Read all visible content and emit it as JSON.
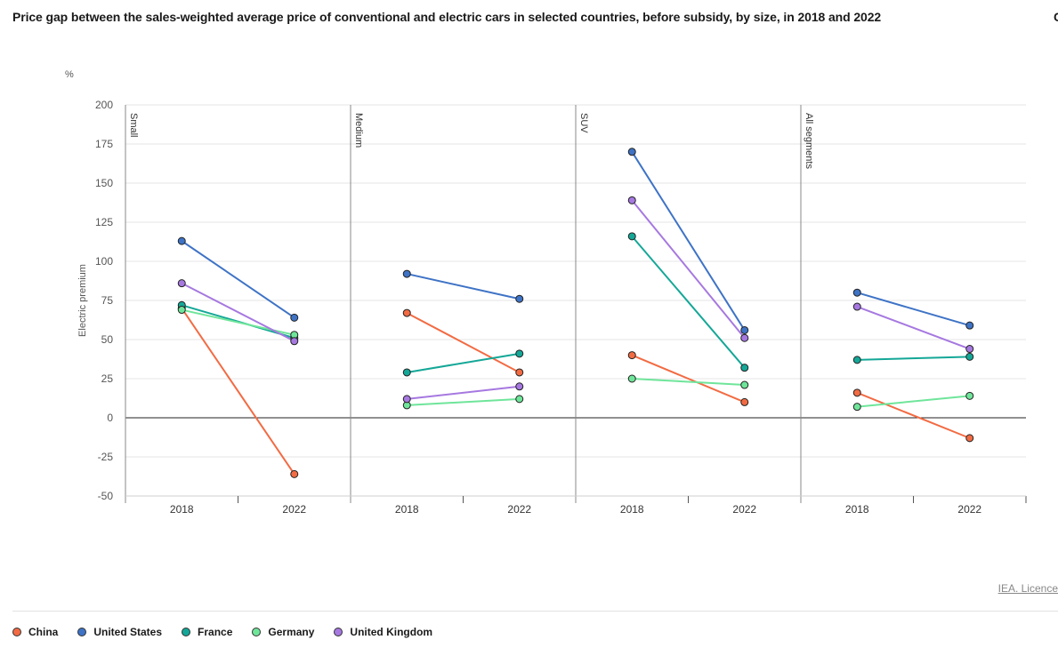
{
  "title": "Price gap between the sales-weighted average price of conventional and electric cars in selected countries, before subsidy, by size, in 2018 and 2022",
  "title_overflow": "C",
  "licence": "IEA. Licence",
  "chart_data": {
    "type": "line",
    "unit_label": "%",
    "ylabel": "Electric premium",
    "ylim": [
      -50,
      200
    ],
    "yticks": [
      200,
      175,
      150,
      125,
      100,
      75,
      50,
      25,
      0,
      -25,
      -50
    ],
    "categories": [
      "2018",
      "2022"
    ],
    "panels": [
      "Small",
      "Medium",
      "SUV",
      "All segments"
    ],
    "series": [
      {
        "name": "China",
        "color": "#f26b43",
        "values": [
          [
            70,
            -36
          ],
          [
            67,
            29
          ],
          [
            40,
            10
          ],
          [
            16,
            -13
          ]
        ]
      },
      {
        "name": "United States",
        "color": "#3e73c6",
        "values": [
          [
            113,
            64
          ],
          [
            92,
            76
          ],
          [
            170,
            56
          ],
          [
            80,
            59
          ]
        ]
      },
      {
        "name": "France",
        "color": "#14a797",
        "values": [
          [
            72,
            51
          ],
          [
            29,
            41
          ],
          [
            116,
            32
          ],
          [
            37,
            39
          ]
        ]
      },
      {
        "name": "Germany",
        "color": "#6fe59a",
        "values": [
          [
            69,
            53
          ],
          [
            8,
            12
          ],
          [
            25,
            21
          ],
          [
            7,
            14
          ]
        ]
      },
      {
        "name": "United Kingdom",
        "color": "#a678e0",
        "values": [
          [
            86,
            49
          ],
          [
            12,
            20
          ],
          [
            139,
            51
          ],
          [
            71,
            44
          ]
        ]
      }
    ]
  }
}
